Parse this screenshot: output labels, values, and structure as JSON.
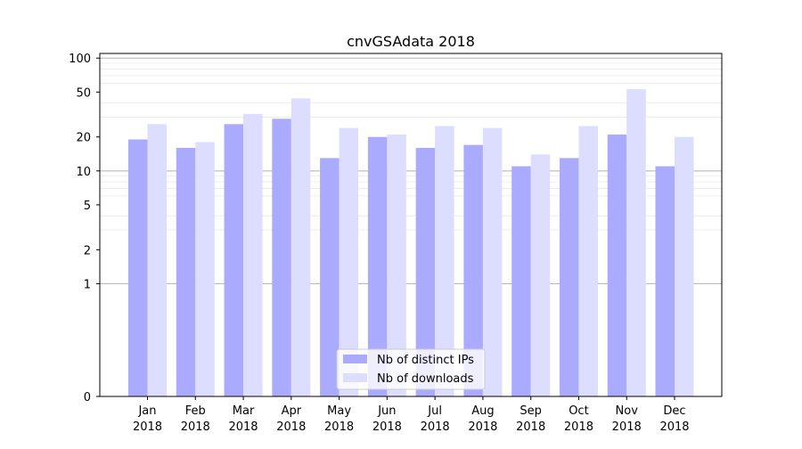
{
  "chart_data": {
    "type": "bar",
    "title": "cnvGSAdata 2018",
    "xlabel": "",
    "ylabel": "",
    "yscale": "symlog",
    "ylim": [
      0,
      110
    ],
    "yticks": [
      0,
      1,
      2,
      5,
      10,
      20,
      50,
      100
    ],
    "ytick_labels": [
      "0",
      "1",
      "2",
      "5",
      "10",
      "20",
      "50",
      "100"
    ],
    "categories": [
      [
        "Jan",
        "2018"
      ],
      [
        "Feb",
        "2018"
      ],
      [
        "Mar",
        "2018"
      ],
      [
        "Apr",
        "2018"
      ],
      [
        "May",
        "2018"
      ],
      [
        "Jun",
        "2018"
      ],
      [
        "Jul",
        "2018"
      ],
      [
        "Aug",
        "2018"
      ],
      [
        "Sep",
        "2018"
      ],
      [
        "Oct",
        "2018"
      ],
      [
        "Nov",
        "2018"
      ],
      [
        "Dec",
        "2018"
      ]
    ],
    "series": [
      {
        "name": "Nb of distinct IPs",
        "color": "#aaaaff",
        "values": [
          19,
          16,
          26,
          29,
          13,
          20,
          16,
          17,
          11,
          13,
          21,
          11
        ]
      },
      {
        "name": "Nb of downloads",
        "color": "#ddddff",
        "values": [
          26,
          18,
          32,
          44,
          24,
          21,
          25,
          24,
          14,
          25,
          53,
          20
        ]
      }
    ],
    "grid": true,
    "legend": "lower-center"
  }
}
